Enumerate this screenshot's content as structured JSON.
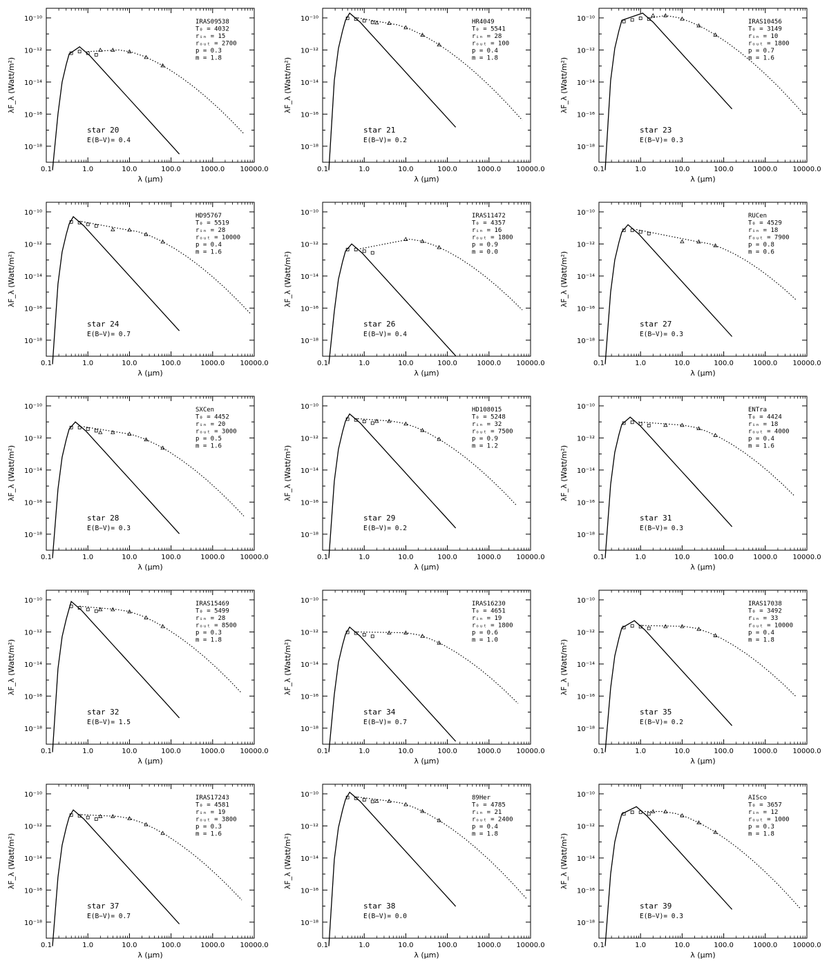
{
  "axes": {
    "xlabel": "λ (μm)",
    "ylabel": "λF_λ (Watt/m²)",
    "x_ticks": [
      "0.1",
      "1.0",
      "10.0",
      "100.0",
      "1000.0",
      "10000.0"
    ],
    "y_ticks": [
      "10⁻¹⁰",
      "10⁻¹²",
      "10⁻¹⁴",
      "10⁻¹⁶",
      "10⁻¹⁸"
    ],
    "xlim": [
      0.1,
      10000
    ],
    "ylim_log10": [
      -19.0,
      -9.4
    ],
    "x_scale": "log",
    "y_scale": "log"
  },
  "chart_data": [
    {
      "type": "line",
      "star": "star 20",
      "name": "IRAS09538",
      "T0": "4032",
      "rin": "15",
      "rout": "2700",
      "p": "0.3",
      "m": "1.8",
      "ebv": "0.4",
      "peak_logx": -0.2,
      "peak_logy": -11.8,
      "dust_peak_logx": 0.75,
      "dust_peak_logy": -12.0
    },
    {
      "type": "line",
      "star": "star 21",
      "name": "HR4049",
      "T0": "5541",
      "rin": "28",
      "rout": "100",
      "p": "0.4",
      "m": "1.8",
      "ebv": "0.2",
      "peak_logx": -0.35,
      "peak_logy": -9.7,
      "dust_peak_logx": 0.5,
      "dust_peak_logy": -10.3
    },
    {
      "type": "line",
      "star": "star 23",
      "name": "IRAS10456",
      "T0": "3149",
      "rin": "10",
      "rout": "1800",
      "p": "0.7",
      "m": "1.6",
      "ebv": "0.3",
      "peak_logx": 0.05,
      "peak_logy": -9.7,
      "dust_peak_logx": 0.6,
      "dust_peak_logy": -9.85
    },
    {
      "type": "line",
      "star": "star 24",
      "name": "HD95767",
      "T0": "5519",
      "rin": "28",
      "rout": "10000",
      "p": "0.4",
      "m": "1.6",
      "ebv": "0.7",
      "peak_logx": -0.35,
      "peak_logy": -10.3,
      "dust_peak_logx": 0.9,
      "dust_peak_logy": -11.1
    },
    {
      "type": "line",
      "star": "star 26",
      "name": "IRAS11472",
      "T0": "4357",
      "rin": "16",
      "rout": "1800",
      "p": "0.9",
      "m": "0.0",
      "ebv": "0.4",
      "peak_logx": -0.3,
      "peak_logy": -12.0,
      "dust_peak_logx": 1.1,
      "dust_peak_logy": -11.7
    },
    {
      "type": "line",
      "star": "star 27",
      "name": "RUCen",
      "T0": "4529",
      "rin": "18",
      "rout": "7900",
      "p": "0.8",
      "m": "0.6",
      "ebv": "0.3",
      "peak_logx": -0.3,
      "peak_logy": -10.8,
      "dust_peak_logx": 1.35,
      "dust_peak_logy": -11.85
    },
    {
      "type": "line",
      "star": "star 28",
      "name": "SXCen",
      "T0": "4452",
      "rin": "20",
      "rout": "3000",
      "p": "0.5",
      "m": "1.6",
      "ebv": "0.3",
      "peak_logx": -0.3,
      "peak_logy": -11.0,
      "dust_peak_logx": 0.75,
      "dust_peak_logy": -11.65
    },
    {
      "type": "line",
      "star": "star 29",
      "name": "HD108015",
      "T0": "5248",
      "rin": "32",
      "rout": "7500",
      "p": "0.9",
      "m": "1.2",
      "ebv": "0.2",
      "peak_logx": -0.35,
      "peak_logy": -10.5,
      "dust_peak_logx": 0.65,
      "dust_peak_logy": -10.95
    },
    {
      "type": "line",
      "star": "star 31",
      "name": "ENTra",
      "T0": "4424",
      "rin": "18",
      "rout": "4000",
      "p": "0.4",
      "m": "1.6",
      "ebv": "0.3",
      "peak_logx": -0.25,
      "peak_logy": -10.7,
      "dust_peak_logx": 1.0,
      "dust_peak_logy": -11.2
    },
    {
      "type": "line",
      "star": "star 32",
      "name": "IRAS15469",
      "T0": "5499",
      "rin": "28",
      "rout": "8500",
      "p": "0.3",
      "m": "1.8",
      "ebv": "1.5",
      "peak_logx": -0.4,
      "peak_logy": -10.1,
      "dust_peak_logx": 0.7,
      "dust_peak_logy": -10.6
    },
    {
      "type": "line",
      "star": "star 34",
      "name": "IRAS16230",
      "T0": "4651",
      "rin": "19",
      "rout": "1800",
      "p": "0.6",
      "m": "1.0",
      "ebv": "0.7",
      "peak_logx": -0.35,
      "peak_logy": -11.7,
      "dust_peak_logx": 1.0,
      "dust_peak_logy": -12.05
    },
    {
      "type": "line",
      "star": "star 35",
      "name": "IRAS17038",
      "T0": "3492",
      "rin": "33",
      "rout": "10000",
      "p": "0.4",
      "m": "1.8",
      "ebv": "0.2",
      "peak_logx": -0.15,
      "peak_logy": -11.3,
      "dust_peak_logx": 1.05,
      "dust_peak_logy": -11.65
    },
    {
      "type": "line",
      "star": "star 37",
      "name": "IRAS17243",
      "T0": "4581",
      "rin": "19",
      "rout": "3800",
      "p": "0.3",
      "m": "1.6",
      "ebv": "0.7",
      "peak_logx": -0.35,
      "peak_logy": -11.0,
      "dust_peak_logx": 0.7,
      "dust_peak_logy": -11.4
    },
    {
      "type": "line",
      "star": "star 38",
      "name": "89Her",
      "T0": "4785",
      "rin": "21",
      "rout": "2400",
      "p": "0.4",
      "m": "1.8",
      "ebv": "0.0",
      "peak_logx": -0.35,
      "peak_logy": -9.9,
      "dust_peak_logx": 0.6,
      "dust_peak_logy": -10.45
    },
    {
      "type": "line",
      "star": "star 39",
      "name": "AISco",
      "T0": "3657",
      "rin": "12",
      "rout": "1000",
      "p": "0.3",
      "m": "1.8",
      "ebv": "0.3",
      "peak_logx": -0.1,
      "peak_logy": -10.8,
      "dust_peak_logx": 0.55,
      "dust_peak_logy": -11.1
    }
  ]
}
